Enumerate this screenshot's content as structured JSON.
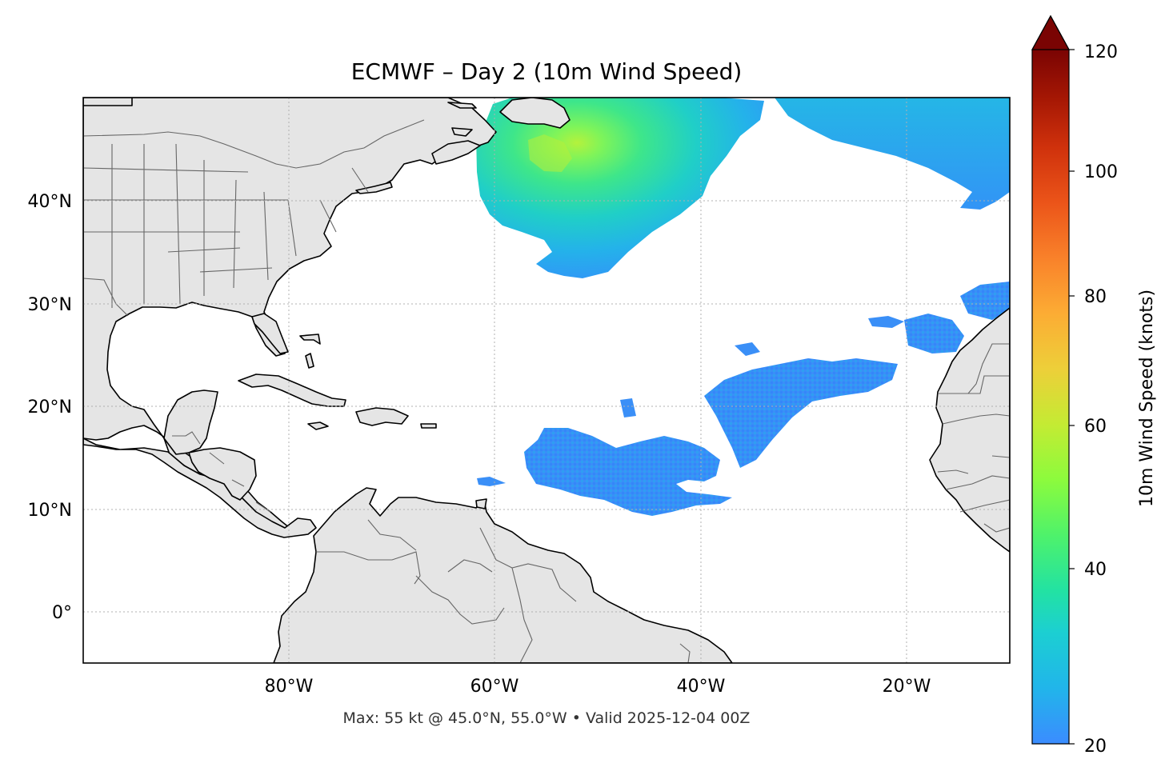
{
  "map": {
    "title": "ECMWF – Day 2 (10m Wind Speed)",
    "caption": "Max: 55 kt @ 45.0°N, 55.0°W • Valid 2025-12-04 00Z",
    "extent": {
      "lon_min": -100,
      "lon_max": -10,
      "lat_min": -5,
      "lat_max": 50
    },
    "lat_ticks": [
      {
        "value": 40,
        "label": "40°N"
      },
      {
        "value": 30,
        "label": "30°N"
      },
      {
        "value": 20,
        "label": "20°N"
      },
      {
        "value": 10,
        "label": "10°N"
      },
      {
        "value": 0,
        "label": "0°"
      }
    ],
    "lon_ticks": [
      {
        "value": -80,
        "label": "80°W"
      },
      {
        "value": -60,
        "label": "60°W"
      },
      {
        "value": -40,
        "label": "40°W"
      },
      {
        "value": -20,
        "label": "20°W"
      }
    ],
    "land_color": "#e5e5e5",
    "coast_color": "#000000",
    "border_color": "#666666"
  },
  "colorbar": {
    "label": "10m Wind Speed (knots)",
    "min": 20,
    "max": 120,
    "extend": "max",
    "ticks": [
      "20",
      "40",
      "60",
      "80",
      "100",
      "120"
    ],
    "colormap": "turbo"
  },
  "wind_regions": [
    {
      "name": "north-atlantic-storm",
      "max_kt": 55,
      "center_lat": 45.0,
      "center_lon": -55.0
    },
    {
      "name": "northeast-atlantic",
      "max_kt": 30
    },
    {
      "name": "tropical-trades-west",
      "max_kt": 25
    },
    {
      "name": "tropical-trades-central",
      "max_kt": 24
    },
    {
      "name": "canary-trades",
      "max_kt": 25
    }
  ]
}
